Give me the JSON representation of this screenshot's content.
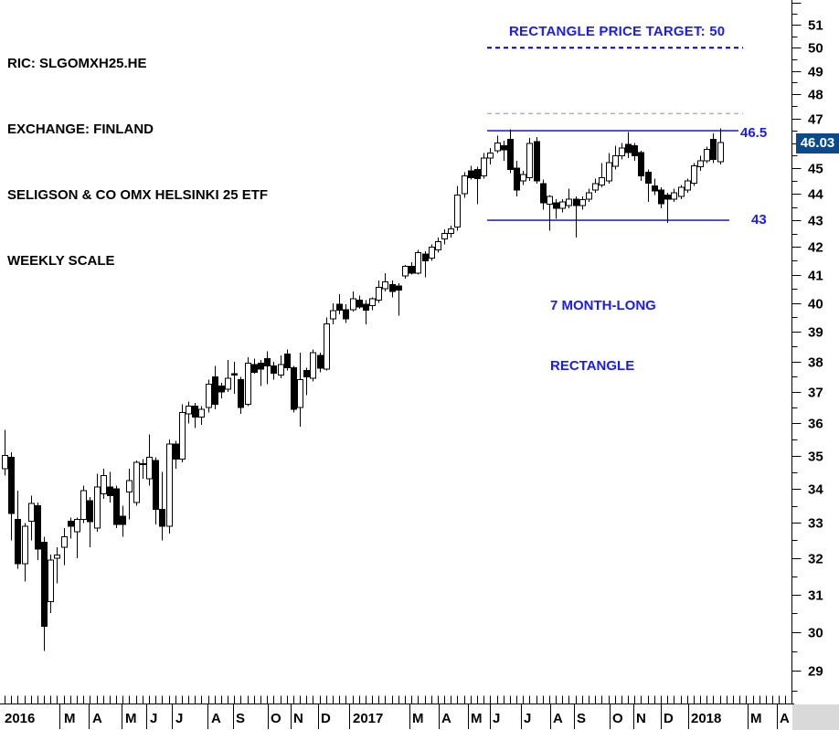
{
  "header": {
    "lines": [
      "RIC: SLGOMXH25.HE",
      "EXCHANGE: FINLAND",
      "SELIGSON & CO OMX HELSINKI 25 ETF",
      "WEEKLY SCALE"
    ]
  },
  "annotations": {
    "price_target_text": "RECTANGLE PRICE TARGET: 50",
    "upper_line_label": "46.5",
    "lower_line_label": "43",
    "rectangle_note_line1": "7 MONTH-LONG",
    "rectangle_note_line2": "RECTANGLE",
    "last_price": "46.03"
  },
  "colors": {
    "text_blue": "#1a1aff",
    "line_blue": "#0000cd",
    "gray_dashed": "#b0b0b0",
    "price_box_bg": "#0a4a8c",
    "corner_gray": "#d9d9d9",
    "axis_black": "#000000"
  },
  "lines": [
    {
      "name": "price-target-line",
      "level": 50,
      "x1": 533,
      "x2": 813,
      "style": "dashed",
      "color": "blue"
    },
    {
      "name": "prior-high-line",
      "level": 47.2,
      "x1": 533,
      "x2": 813,
      "style": "dashed",
      "color": "gray"
    },
    {
      "name": "rectangle-top-line",
      "level": 46.5,
      "x1": 533,
      "x2": 808,
      "style": "solid",
      "color": "blue"
    },
    {
      "name": "rectangle-bottom-line",
      "level": 43,
      "x1": 533,
      "x2": 798,
      "style": "solid",
      "color": "blue"
    }
  ],
  "y_axis": {
    "labels": [
      "51",
      "50",
      "49",
      "48",
      "47",
      "46",
      "45",
      "44",
      "43",
      "42",
      "41",
      "40",
      "39",
      "38",
      "37",
      "36",
      "35",
      "34",
      "33",
      "32",
      "31",
      "30",
      "29"
    ],
    "label_values": [
      51,
      50,
      49,
      48,
      47,
      46,
      45,
      44,
      43,
      42,
      41,
      40,
      39,
      38,
      37,
      36,
      35,
      34,
      33,
      32,
      31,
      30,
      29
    ],
    "major_ticks": [
      52,
      51,
      50,
      49,
      48,
      47,
      46,
      45,
      44,
      43,
      42,
      41,
      40,
      39,
      38,
      37,
      36,
      35,
      34,
      33,
      32,
      31,
      30,
      29
    ],
    "minor_ticks": [
      51.5,
      50.5,
      49.5,
      48.5,
      47.5,
      46.5,
      45.5,
      44.5,
      43.5,
      42.5,
      41.5,
      40.5,
      39.5,
      38.5,
      37.5,
      36.5,
      35.5,
      34.5,
      33.5,
      32.5,
      31.5,
      30.5,
      29.5,
      28.5
    ]
  },
  "x_axis": {
    "labels": [
      {
        "text": "2016",
        "x": 5
      },
      {
        "text": "M",
        "x": 70
      },
      {
        "text": "A",
        "x": 101
      },
      {
        "text": "M",
        "x": 137
      },
      {
        "text": "J",
        "x": 164
      },
      {
        "text": "J",
        "x": 192
      },
      {
        "text": "A",
        "x": 231
      },
      {
        "text": "S",
        "x": 258
      },
      {
        "text": "O",
        "x": 296
      },
      {
        "text": "N",
        "x": 321
      },
      {
        "text": "D",
        "x": 351
      },
      {
        "text": "2017",
        "x": 386
      },
      {
        "text": "M",
        "x": 451
      },
      {
        "text": "A",
        "x": 483
      },
      {
        "text": "M",
        "x": 515
      },
      {
        "text": "J",
        "x": 539
      },
      {
        "text": "J",
        "x": 573
      },
      {
        "text": "A",
        "x": 605
      },
      {
        "text": "S",
        "x": 631
      },
      {
        "text": "O",
        "x": 670
      },
      {
        "text": "N",
        "x": 696
      },
      {
        "text": "D",
        "x": 726
      },
      {
        "text": "2018",
        "x": 756
      },
      {
        "text": "M",
        "x": 821
      },
      {
        "text": "A",
        "x": 853
      }
    ],
    "separators": [
      65,
      97,
      133,
      160,
      188,
      227,
      255,
      293,
      318,
      348,
      382,
      448,
      480,
      512,
      536,
      570,
      602,
      628,
      667,
      693,
      723,
      753,
      818,
      850
    ],
    "weekly_tick_count": 120
  },
  "chart_data": {
    "type": "candlestick",
    "timeframe": "weekly",
    "scale": "log",
    "title": "SELIGSON & CO OMX HELSINKI 25 ETF",
    "ylim": [
      28.18,
      52.13
    ],
    "grid": false,
    "candles": [
      [
        "2016-01-08",
        34.6,
        35.8,
        34.4,
        35.0
      ],
      [
        "2016-01-15",
        34.95,
        35.1,
        32.5,
        33.28
      ],
      [
        "2016-01-22",
        33.1,
        33.95,
        31.7,
        31.85
      ],
      [
        "2016-01-29",
        31.85,
        33.0,
        31.35,
        32.9
      ],
      [
        "2016-02-05",
        33.05,
        33.8,
        32.5,
        33.57
      ],
      [
        "2016-02-12",
        33.5,
        33.6,
        31.95,
        32.25
      ],
      [
        "2016-02-19",
        32.45,
        32.6,
        29.5,
        30.15
      ],
      [
        "2016-02-26",
        30.8,
        32.1,
        30.5,
        31.95
      ],
      [
        "2016-03-04",
        32.0,
        32.3,
        31.3,
        32.08
      ],
      [
        "2016-03-11",
        32.3,
        32.85,
        31.8,
        32.6
      ],
      [
        "2016-03-18",
        33.05,
        33.15,
        32.55,
        32.9
      ],
      [
        "2016-03-25",
        32.75,
        33.15,
        32.0,
        33.1
      ],
      [
        "2016-04-01",
        33.1,
        34.1,
        33.0,
        33.95
      ],
      [
        "2016-04-08",
        33.65,
        33.75,
        32.3,
        33.03
      ],
      [
        "2016-04-15",
        32.85,
        34.45,
        32.75,
        34.05
      ],
      [
        "2016-04-22",
        33.85,
        34.6,
        33.7,
        34.4
      ],
      [
        "2016-04-29",
        34.05,
        34.5,
        33.6,
        33.8
      ],
      [
        "2016-05-06",
        34.0,
        34.1,
        32.85,
        32.95
      ],
      [
        "2016-05-13",
        33.2,
        33.5,
        32.6,
        32.95
      ],
      [
        "2016-05-20",
        33.9,
        34.6,
        33.1,
        34.25
      ],
      [
        "2016-05-27",
        33.6,
        34.85,
        33.5,
        34.8
      ],
      [
        "2016-06-03",
        34.75,
        34.9,
        34.3,
        34.75
      ],
      [
        "2016-06-10",
        34.3,
        35.65,
        34.1,
        34.95
      ],
      [
        "2016-06-17",
        34.85,
        34.95,
        32.95,
        33.4
      ],
      [
        "2016-06-24",
        33.4,
        34.5,
        32.5,
        32.9
      ],
      [
        "2016-07-01",
        32.9,
        35.5,
        32.7,
        35.35
      ],
      [
        "2016-07-08",
        35.35,
        35.45,
        34.6,
        34.9
      ],
      [
        "2016-07-15",
        34.9,
        36.6,
        34.8,
        36.35
      ],
      [
        "2016-07-22",
        36.3,
        36.7,
        36.0,
        36.55
      ],
      [
        "2016-07-29",
        36.55,
        36.65,
        35.85,
        36.2
      ],
      [
        "2016-08-05",
        36.2,
        36.55,
        35.95,
        36.45
      ],
      [
        "2016-08-12",
        36.5,
        37.4,
        36.35,
        37.25
      ],
      [
        "2016-08-19",
        37.5,
        37.85,
        36.45,
        36.6
      ],
      [
        "2016-08-26",
        37.2,
        37.3,
        36.8,
        37.0
      ],
      [
        "2016-09-02",
        37.1,
        38.05,
        37.0,
        37.45
      ],
      [
        "2016-09-09",
        37.6,
        38.0,
        36.95,
        37.55
      ],
      [
        "2016-09-16",
        37.4,
        37.5,
        36.3,
        36.5
      ],
      [
        "2016-09-23",
        36.6,
        38.15,
        36.55,
        37.95
      ],
      [
        "2016-09-30",
        37.9,
        38.1,
        37.6,
        37.65
      ],
      [
        "2016-10-07",
        37.95,
        38.05,
        37.2,
        37.75
      ],
      [
        "2016-10-14",
        38.1,
        38.35,
        37.25,
        37.85
      ],
      [
        "2016-10-21",
        37.85,
        38.0,
        37.4,
        37.62
      ],
      [
        "2016-10-28",
        37.55,
        38.2,
        37.45,
        37.9
      ],
      [
        "2016-11-04",
        38.25,
        38.4,
        37.7,
        37.8
      ],
      [
        "2016-11-11",
        37.8,
        37.85,
        36.35,
        36.45
      ],
      [
        "2016-11-18",
        36.5,
        38.3,
        35.9,
        37.4
      ],
      [
        "2016-11-25",
        37.7,
        37.8,
        36.9,
        37.5
      ],
      [
        "2016-12-02",
        37.45,
        38.4,
        37.35,
        38.3
      ],
      [
        "2016-12-09",
        38.2,
        38.3,
        37.65,
        37.78
      ],
      [
        "2016-12-16",
        37.75,
        39.5,
        37.7,
        39.28
      ],
      [
        "2016-12-23",
        39.45,
        39.98,
        39.25,
        39.73
      ],
      [
        "2016-12-30",
        39.95,
        40.3,
        39.6,
        39.75
      ],
      [
        "2017-01-06",
        39.77,
        39.95,
        39.3,
        39.45
      ],
      [
        "2017-01-13",
        39.77,
        40.4,
        39.7,
        40.15
      ],
      [
        "2017-01-20",
        40.1,
        40.25,
        39.8,
        39.85
      ],
      [
        "2017-01-27",
        39.95,
        40.1,
        39.25,
        39.75
      ],
      [
        "2017-02-03",
        39.9,
        40.2,
        39.75,
        40.15
      ],
      [
        "2017-02-10",
        40.1,
        40.8,
        40.0,
        40.55
      ],
      [
        "2017-02-17",
        40.5,
        41.05,
        40.4,
        40.75
      ],
      [
        "2017-02-24",
        40.65,
        40.8,
        40.2,
        40.4
      ],
      [
        "2017-03-03",
        40.6,
        40.7,
        39.55,
        40.45
      ],
      [
        "2017-03-10",
        40.95,
        41.35,
        40.85,
        41.3
      ],
      [
        "2017-03-17",
        41.3,
        41.45,
        41.0,
        41.05
      ],
      [
        "2017-03-24",
        41.05,
        41.9,
        41.0,
        41.8
      ],
      [
        "2017-03-31",
        41.75,
        41.85,
        40.9,
        41.5
      ],
      [
        "2017-04-07",
        41.6,
        42.1,
        41.5,
        42.0
      ],
      [
        "2017-04-14",
        41.9,
        42.35,
        41.8,
        42.2
      ],
      [
        "2017-04-21",
        42.3,
        42.65,
        42.1,
        42.5
      ],
      [
        "2017-04-28",
        42.5,
        42.8,
        42.35,
        42.68
      ],
      [
        "2017-05-05",
        42.75,
        44.3,
        42.6,
        43.95
      ],
      [
        "2017-05-12",
        44.0,
        44.85,
        43.85,
        44.7
      ],
      [
        "2017-05-19",
        44.9,
        45.1,
        44.55,
        44.62
      ],
      [
        "2017-05-26",
        44.95,
        45.05,
        43.6,
        44.6
      ],
      [
        "2017-06-02",
        44.7,
        45.6,
        44.6,
        45.4
      ],
      [
        "2017-06-09",
        45.4,
        45.8,
        45.15,
        45.6
      ],
      [
        "2017-06-16",
        45.7,
        46.3,
        45.6,
        46.0
      ],
      [
        "2017-06-23",
        45.9,
        46.1,
        45.3,
        45.72
      ],
      [
        "2017-06-30",
        46.15,
        46.55,
        44.8,
        44.95
      ],
      [
        "2017-07-07",
        45.0,
        45.3,
        43.9,
        44.15
      ],
      [
        "2017-07-14",
        44.5,
        44.9,
        44.35,
        44.75
      ],
      [
        "2017-07-21",
        44.62,
        46.2,
        44.5,
        45.99
      ],
      [
        "2017-07-28",
        46.05,
        46.25,
        44.4,
        44.5
      ],
      [
        "2017-08-04",
        44.4,
        44.55,
        43.4,
        43.65
      ],
      [
        "2017-08-11",
        43.6,
        43.95,
        42.6,
        43.9
      ],
      [
        "2017-08-18",
        43.65,
        43.8,
        43.05,
        43.45
      ],
      [
        "2017-08-25",
        43.45,
        43.8,
        43.3,
        43.7
      ],
      [
        "2017-09-01",
        43.55,
        44.2,
        43.45,
        43.8
      ],
      [
        "2017-09-08",
        43.8,
        43.9,
        42.35,
        43.55
      ],
      [
        "2017-09-15",
        43.55,
        43.9,
        43.4,
        43.78
      ],
      [
        "2017-09-22",
        43.8,
        44.2,
        43.7,
        44.05
      ],
      [
        "2017-09-29",
        44.15,
        44.6,
        44.05,
        44.4
      ],
      [
        "2017-10-06",
        44.35,
        45.2,
        44.25,
        44.62
      ],
      [
        "2017-10-13",
        44.5,
        45.6,
        44.4,
        45.22
      ],
      [
        "2017-10-20",
        45.08,
        45.9,
        44.95,
        45.5
      ],
      [
        "2017-10-27",
        45.5,
        46.0,
        45.35,
        45.8
      ],
      [
        "2017-11-03",
        45.95,
        46.45,
        45.4,
        45.62
      ],
      [
        "2017-11-10",
        45.9,
        46.0,
        45.3,
        45.5
      ],
      [
        "2017-11-17",
        45.62,
        45.7,
        44.5,
        44.7
      ],
      [
        "2017-11-24",
        44.85,
        44.95,
        43.7,
        44.42
      ],
      [
        "2017-12-01",
        44.3,
        44.6,
        43.95,
        44.12
      ],
      [
        "2017-12-08",
        44.15,
        44.25,
        43.45,
        43.62
      ],
      [
        "2017-12-15",
        43.95,
        44.05,
        42.9,
        43.8
      ],
      [
        "2017-12-22",
        43.8,
        44.2,
        43.7,
        44.05
      ],
      [
        "2017-12-29",
        43.9,
        44.35,
        43.8,
        44.25
      ],
      [
        "2018-01-05",
        44.15,
        44.6,
        44.05,
        44.5
      ],
      [
        "2018-01-12",
        44.42,
        45.2,
        44.3,
        45.1
      ],
      [
        "2018-01-19",
        45.05,
        45.5,
        44.9,
        45.3
      ],
      [
        "2018-01-26",
        45.3,
        45.85,
        45.2,
        45.75
      ],
      [
        "2018-02-02",
        46.15,
        46.4,
        45.2,
        45.35
      ],
      [
        "2018-02-09",
        45.26,
        46.6,
        45.15,
        46.03
      ]
    ]
  }
}
